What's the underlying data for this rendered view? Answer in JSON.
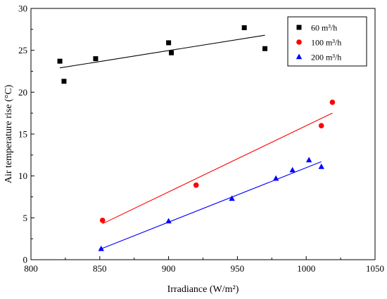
{
  "chart_data": {
    "type": "scatter",
    "title": "",
    "xlabel": "Irradiance (W/m²)",
    "ylabel": "Air temperature rise (°C)",
    "xlim": [
      800,
      1050
    ],
    "ylim": [
      0,
      30
    ],
    "xticks": [
      800,
      850,
      900,
      950,
      1000,
      1050
    ],
    "yticks": [
      0,
      5,
      10,
      15,
      20,
      25,
      30
    ],
    "grid": false,
    "legend_position": "top-right",
    "series": [
      {
        "name": "60 m³/h",
        "color": "#000000",
        "marker": "square",
        "points": [
          [
            821,
            23.7
          ],
          [
            824,
            21.3
          ],
          [
            847,
            24.0
          ],
          [
            900,
            25.9
          ],
          [
            902,
            24.7
          ],
          [
            955,
            27.7
          ],
          [
            970,
            25.2
          ]
        ],
        "fit_line": [
          [
            821,
            22.9
          ],
          [
            970,
            26.8
          ]
        ]
      },
      {
        "name": "100 m³/h",
        "color": "#ff0000",
        "marker": "circle",
        "points": [
          [
            852,
            4.7
          ],
          [
            920,
            8.9
          ],
          [
            1011,
            16.0
          ],
          [
            1019,
            18.8
          ]
        ],
        "fit_line": [
          [
            852,
            4.3
          ],
          [
            1019,
            17.5
          ]
        ]
      },
      {
        "name": "200 m³/h",
        "color": "#0000ff",
        "marker": "triangle",
        "points": [
          [
            851,
            1.3
          ],
          [
            900,
            4.6
          ],
          [
            946,
            7.3
          ],
          [
            978,
            9.7
          ],
          [
            990,
            10.7
          ],
          [
            1002,
            11.9
          ],
          [
            1011,
            11.1
          ]
        ],
        "fit_line": [
          [
            851,
            1.3
          ],
          [
            1011,
            11.7
          ]
        ]
      }
    ]
  }
}
